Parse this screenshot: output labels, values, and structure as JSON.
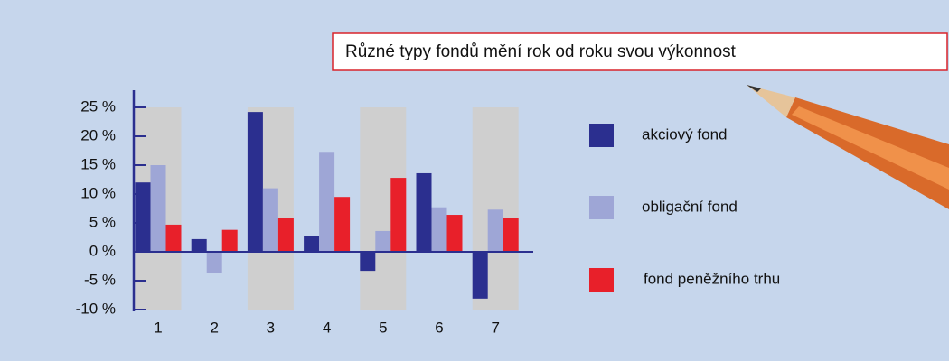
{
  "chart_data": {
    "type": "bar",
    "title": "Různé typy fondů mění rok od roku svou výkonnost",
    "categories": [
      "1",
      "2",
      "3",
      "4",
      "5",
      "6",
      "7"
    ],
    "series": [
      {
        "name": "akciový fond",
        "color": "#2b2f8f",
        "values": [
          12,
          2.2,
          24.2,
          2.7,
          -3.3,
          13.6,
          -8.1
        ]
      },
      {
        "name": "obligační fond",
        "color": "#9ea6d6",
        "values": [
          15,
          -3.6,
          11,
          17.3,
          3.6,
          7.7,
          7.3
        ]
      },
      {
        "name": "fond peněžního trhu",
        "color": "#e8202a",
        "values": [
          4.7,
          3.8,
          5.8,
          9.5,
          12.8,
          6.4,
          5.9
        ]
      }
    ],
    "ylim": [
      -10,
      25
    ],
    "yticks": [
      {
        "value": 25,
        "label": "25 %"
      },
      {
        "value": 20,
        "label": "20 %"
      },
      {
        "value": 15,
        "label": "15 %"
      },
      {
        "value": 10,
        "label": "10 %"
      },
      {
        "value": 5,
        "label": "5 %"
      },
      {
        "value": 0,
        "label": "0 %"
      },
      {
        "value": -5,
        "label": "-5 %"
      },
      {
        "value": -10,
        "label": "-10 %"
      }
    ],
    "legend": "right"
  }
}
